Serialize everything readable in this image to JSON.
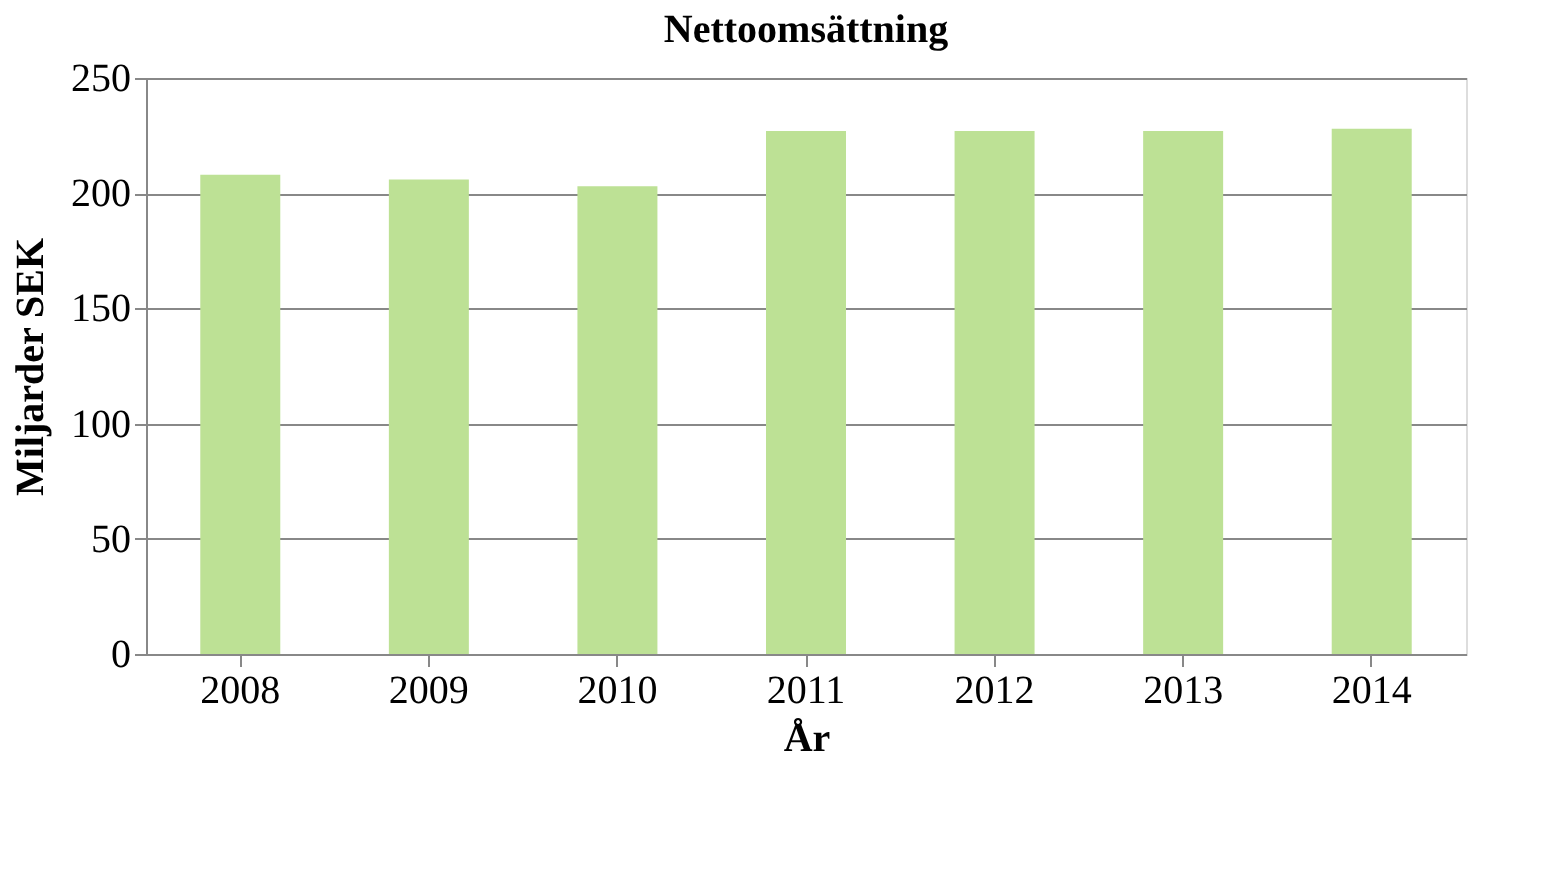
{
  "chart_data": {
    "type": "bar",
    "title": "Nettoomsättning",
    "xlabel": "År",
    "ylabel": "Miljarder SEK",
    "categories": [
      "2008",
      "2009",
      "2010",
      "2011",
      "2012",
      "2013",
      "2014"
    ],
    "values": [
      208,
      206,
      203,
      227,
      227,
      227,
      228
    ],
    "color": "#bde195",
    "ylim": [
      0,
      250
    ],
    "yticks": [
      0,
      50,
      100,
      150,
      200,
      250
    ],
    "grid": "y"
  }
}
